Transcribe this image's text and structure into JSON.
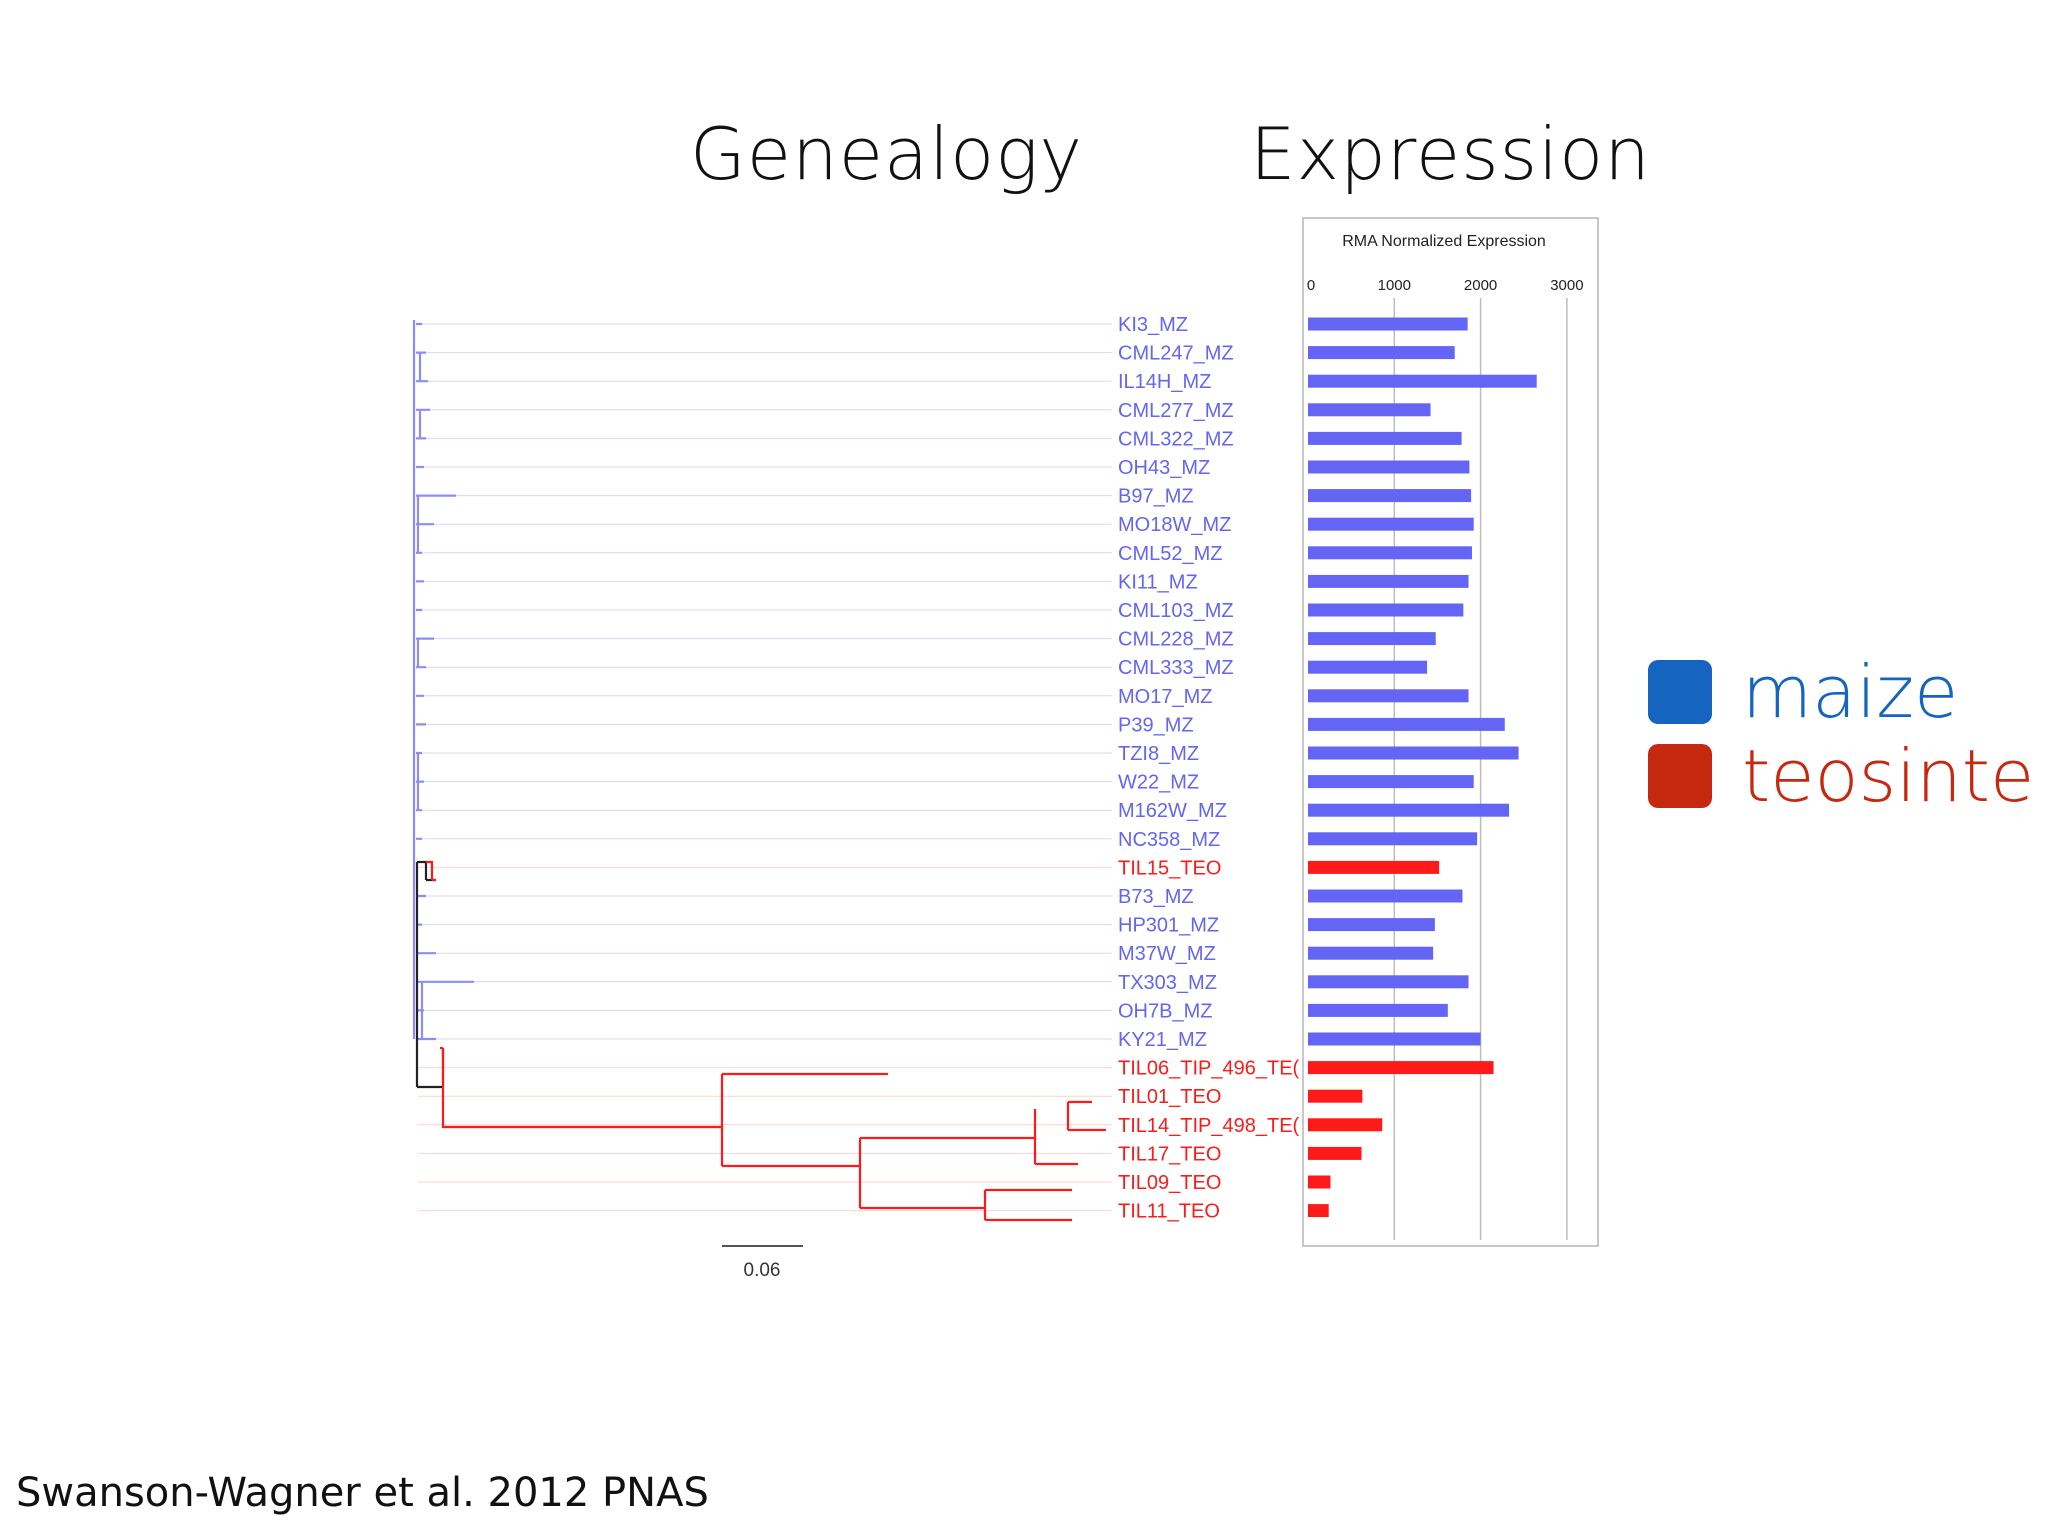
{
  "headings": {
    "genealogy": "Genealogy",
    "expression": "Expression"
  },
  "legend": [
    {
      "label": "maize",
      "color": "#1565C0"
    },
    {
      "label": "teosinte",
      "color": "#C62810"
    }
  ],
  "citation": "Swanson-Wagner et al. 2012 PNAS",
  "tree": {
    "scale_label": "0.06",
    "scale_value": 0.06
  },
  "colors": {
    "maize": "#6464F5",
    "teosinte": "#FF1A1A",
    "maize_line": "#8C8CF5",
    "root_line": "#222222",
    "guide": "#D8D8F0"
  },
  "chart_data": {
    "type": "bar",
    "orientation": "horizontal",
    "title": "RMA Normalized Expression",
    "xlim": [
      0,
      3200
    ],
    "xticks": [
      "0",
      "1000",
      "2000",
      "3000"
    ],
    "grid": true,
    "categories": [
      "KI3_MZ",
      "CML247_MZ",
      "IL14H_MZ",
      "CML277_MZ",
      "CML322_MZ",
      "OH43_MZ",
      "B97_MZ",
      "MO18W_MZ",
      "CML52_MZ",
      "KI11_MZ",
      "CML103_MZ",
      "CML228_MZ",
      "CML333_MZ",
      "MO17_MZ",
      "P39_MZ",
      "TZI8_MZ",
      "W22_MZ",
      "M162W_MZ",
      "NC358_MZ",
      "TIL15_TEO",
      "B73_MZ",
      "HP301_MZ",
      "M37W_MZ",
      "TX303_MZ",
      "OH7B_MZ",
      "KY21_MZ",
      "TIL06_TIP_496_TE(",
      "TIL01_TEO",
      "TIL14_TIP_498_TE(",
      "TIL17_TEO",
      "TIL09_TEO",
      "TIL11_TEO"
    ],
    "groups": [
      "maize",
      "maize",
      "maize",
      "maize",
      "maize",
      "maize",
      "maize",
      "maize",
      "maize",
      "maize",
      "maize",
      "maize",
      "maize",
      "maize",
      "maize",
      "maize",
      "maize",
      "maize",
      "maize",
      "teosinte",
      "maize",
      "maize",
      "maize",
      "maize",
      "maize",
      "maize",
      "teosinte",
      "teosinte",
      "teosinte",
      "teosinte",
      "teosinte",
      "teosinte"
    ],
    "values": [
      1850,
      1700,
      2650,
      1420,
      1780,
      1870,
      1890,
      1920,
      1900,
      1860,
      1800,
      1480,
      1380,
      1860,
      2280,
      2440,
      1920,
      2330,
      1960,
      1520,
      1790,
      1470,
      1450,
      1860,
      1620,
      2000,
      2150,
      630,
      860,
      620,
      260,
      240
    ]
  }
}
